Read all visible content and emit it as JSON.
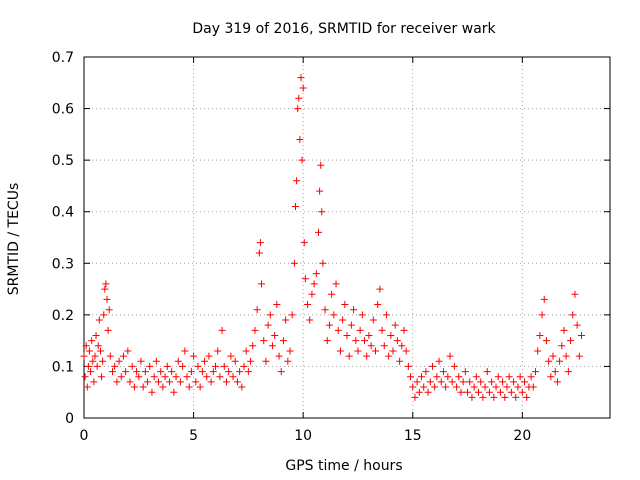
{
  "chart_data": {
    "type": "scatter",
    "title": "Day 319 of 2016, SRMTID for receiver wark",
    "xlabel": "GPS time / hours",
    "ylabel": "SRMTID / TECUs",
    "xlim": [
      0,
      24
    ],
    "ylim": [
      0,
      0.7
    ],
    "x_ticks": [
      0,
      5,
      10,
      15,
      20
    ],
    "y_ticks": [
      0,
      0.1,
      0.2,
      0.3,
      0.4,
      0.5,
      0.6,
      0.7
    ],
    "x_tick_labels": [
      "0",
      "5",
      "10",
      "15",
      "20"
    ],
    "y_tick_labels": [
      "0",
      "0.1",
      "0.2",
      "0.3",
      "0.4",
      "0.5",
      "0.6",
      "0.7"
    ],
    "grid": true,
    "marker": "+",
    "color": "#ff0000",
    "series": [
      {
        "name": "SRMTID",
        "points": [
          [
            0.0,
            0.12
          ],
          [
            0.05,
            0.08
          ],
          [
            0.1,
            0.14
          ],
          [
            0.15,
            0.06
          ],
          [
            0.2,
            0.1
          ],
          [
            0.25,
            0.13
          ],
          [
            0.3,
            0.09
          ],
          [
            0.35,
            0.15
          ],
          [
            0.4,
            0.11
          ],
          [
            0.45,
            0.07
          ],
          [
            0.5,
            0.12
          ],
          [
            0.55,
            0.16
          ],
          [
            0.6,
            0.1
          ],
          [
            0.65,
            0.14
          ],
          [
            0.7,
            0.19
          ],
          [
            0.75,
            0.13
          ],
          [
            0.8,
            0.08
          ],
          [
            0.85,
            0.11
          ],
          [
            0.9,
            0.2
          ],
          [
            0.95,
            0.25
          ],
          [
            1.0,
            0.26
          ],
          [
            1.05,
            0.23
          ],
          [
            1.1,
            0.17
          ],
          [
            1.15,
            0.21
          ],
          [
            1.2,
            0.12
          ],
          [
            1.3,
            0.09
          ],
          [
            1.4,
            0.1
          ],
          [
            1.5,
            0.07
          ],
          [
            1.6,
            0.11
          ],
          [
            1.7,
            0.08
          ],
          [
            1.8,
            0.12
          ],
          [
            1.9,
            0.09
          ],
          [
            2.0,
            0.13
          ],
          [
            2.1,
            0.07
          ],
          [
            2.2,
            0.1
          ],
          [
            2.3,
            0.06
          ],
          [
            2.4,
            0.09
          ],
          [
            2.5,
            0.08
          ],
          [
            2.6,
            0.11
          ],
          [
            2.7,
            0.06
          ],
          [
            2.8,
            0.09
          ],
          [
            2.9,
            0.07
          ],
          [
            3.0,
            0.1
          ],
          [
            3.1,
            0.05
          ],
          [
            3.2,
            0.08
          ],
          [
            3.3,
            0.11
          ],
          [
            3.4,
            0.07
          ],
          [
            3.5,
            0.09
          ],
          [
            3.6,
            0.06
          ],
          [
            3.7,
            0.08
          ],
          [
            3.8,
            0.1
          ],
          [
            3.9,
            0.07
          ],
          [
            4.0,
            0.09
          ],
          [
            4.1,
            0.05
          ],
          [
            4.2,
            0.08
          ],
          [
            4.3,
            0.11
          ],
          [
            4.4,
            0.07
          ],
          [
            4.5,
            0.1
          ],
          [
            4.6,
            0.13
          ],
          [
            4.7,
            0.08
          ],
          [
            4.8,
            0.06
          ],
          [
            4.9,
            0.09
          ],
          [
            5.0,
            0.12
          ],
          [
            5.1,
            0.07
          ],
          [
            5.2,
            0.1
          ],
          [
            5.3,
            0.06
          ],
          [
            5.4,
            0.09
          ],
          [
            5.5,
            0.11
          ],
          [
            5.6,
            0.08
          ],
          [
            5.7,
            0.12
          ],
          [
            5.8,
            0.07
          ],
          [
            5.9,
            0.09
          ],
          [
            6.0,
            0.1
          ],
          [
            6.1,
            0.13
          ],
          [
            6.2,
            0.08
          ],
          [
            6.3,
            0.17
          ],
          [
            6.4,
            0.1
          ],
          [
            6.5,
            0.07
          ],
          [
            6.6,
            0.09
          ],
          [
            6.7,
            0.12
          ],
          [
            6.8,
            0.08
          ],
          [
            6.9,
            0.11
          ],
          [
            7.0,
            0.07
          ],
          [
            7.1,
            0.09
          ],
          [
            7.2,
            0.06
          ],
          [
            7.3,
            0.1
          ],
          [
            7.4,
            0.13
          ],
          [
            7.5,
            0.09
          ],
          [
            7.6,
            0.11
          ],
          [
            7.7,
            0.14
          ],
          [
            7.8,
            0.17
          ],
          [
            7.9,
            0.21
          ],
          [
            8.0,
            0.32
          ],
          [
            8.05,
            0.34
          ],
          [
            8.1,
            0.26
          ],
          [
            8.2,
            0.15
          ],
          [
            8.3,
            0.11
          ],
          [
            8.4,
            0.18
          ],
          [
            8.5,
            0.2
          ],
          [
            8.6,
            0.14
          ],
          [
            8.7,
            0.16
          ],
          [
            8.8,
            0.22
          ],
          [
            8.9,
            0.12
          ],
          [
            9.0,
            0.09
          ],
          [
            9.1,
            0.15
          ],
          [
            9.2,
            0.19
          ],
          [
            9.3,
            0.11
          ],
          [
            9.4,
            0.13
          ],
          [
            9.5,
            0.2
          ],
          [
            9.6,
            0.3
          ],
          [
            9.65,
            0.41
          ],
          [
            9.7,
            0.46
          ],
          [
            9.75,
            0.6
          ],
          [
            9.8,
            0.62
          ],
          [
            9.85,
            0.54
          ],
          [
            9.9,
            0.66
          ],
          [
            9.95,
            0.5
          ],
          [
            10.0,
            0.64
          ],
          [
            10.05,
            0.34
          ],
          [
            10.1,
            0.27
          ],
          [
            10.2,
            0.22
          ],
          [
            10.3,
            0.19
          ],
          [
            10.4,
            0.24
          ],
          [
            10.5,
            0.26
          ],
          [
            10.6,
            0.28
          ],
          [
            10.7,
            0.36
          ],
          [
            10.75,
            0.44
          ],
          [
            10.8,
            0.49
          ],
          [
            10.85,
            0.4
          ],
          [
            10.9,
            0.3
          ],
          [
            11.0,
            0.21
          ],
          [
            11.1,
            0.15
          ],
          [
            11.2,
            0.18
          ],
          [
            11.3,
            0.24
          ],
          [
            11.4,
            0.2
          ],
          [
            11.5,
            0.26
          ],
          [
            11.6,
            0.17
          ],
          [
            11.7,
            0.13
          ],
          [
            11.8,
            0.19
          ],
          [
            11.9,
            0.22
          ],
          [
            12.0,
            0.16
          ],
          [
            12.1,
            0.12
          ],
          [
            12.2,
            0.18
          ],
          [
            12.3,
            0.21
          ],
          [
            12.4,
            0.15
          ],
          [
            12.5,
            0.13
          ],
          [
            12.6,
            0.17
          ],
          [
            12.7,
            0.2
          ],
          [
            12.8,
            0.15
          ],
          [
            12.9,
            0.12
          ],
          [
            13.0,
            0.16
          ],
          [
            13.1,
            0.14
          ],
          [
            13.2,
            0.19
          ],
          [
            13.3,
            0.13
          ],
          [
            13.4,
            0.22
          ],
          [
            13.5,
            0.25
          ],
          [
            13.6,
            0.17
          ],
          [
            13.7,
            0.14
          ],
          [
            13.8,
            0.2
          ],
          [
            13.9,
            0.12
          ],
          [
            14.0,
            0.16
          ],
          [
            14.1,
            0.13
          ],
          [
            14.2,
            0.18
          ],
          [
            14.3,
            0.15
          ],
          [
            14.4,
            0.11
          ],
          [
            14.5,
            0.14
          ],
          [
            14.6,
            0.17
          ],
          [
            14.7,
            0.13
          ],
          [
            14.8,
            0.1
          ],
          [
            14.9,
            0.08
          ],
          [
            15.0,
            0.06
          ],
          [
            15.1,
            0.04
          ],
          [
            15.2,
            0.07
          ],
          [
            15.3,
            0.05
          ],
          [
            15.4,
            0.08
          ],
          [
            15.5,
            0.06
          ],
          [
            15.6,
            0.09
          ],
          [
            15.7,
            0.05
          ],
          [
            15.8,
            0.07
          ],
          [
            15.9,
            0.1
          ],
          [
            16.0,
            0.06
          ],
          [
            16.1,
            0.08
          ],
          [
            16.2,
            0.11
          ],
          [
            16.3,
            0.07
          ],
          [
            16.4,
            0.09
          ],
          [
            16.5,
            0.06
          ],
          [
            16.6,
            0.08
          ],
          [
            16.7,
            0.12
          ],
          [
            16.8,
            0.07
          ],
          [
            16.9,
            0.1
          ],
          [
            17.0,
            0.06
          ],
          [
            17.1,
            0.08
          ],
          [
            17.2,
            0.05
          ],
          [
            17.3,
            0.07
          ],
          [
            17.4,
            0.09
          ],
          [
            17.5,
            0.05
          ],
          [
            17.6,
            0.07
          ],
          [
            17.7,
            0.04
          ],
          [
            17.8,
            0.06
          ],
          [
            17.9,
            0.08
          ],
          [
            18.0,
            0.05
          ],
          [
            18.1,
            0.07
          ],
          [
            18.2,
            0.04
          ],
          [
            18.3,
            0.06
          ],
          [
            18.4,
            0.09
          ],
          [
            18.5,
            0.05
          ],
          [
            18.6,
            0.07
          ],
          [
            18.7,
            0.04
          ],
          [
            18.8,
            0.06
          ],
          [
            18.9,
            0.08
          ],
          [
            19.0,
            0.05
          ],
          [
            19.1,
            0.07
          ],
          [
            19.2,
            0.04
          ],
          [
            19.3,
            0.06
          ],
          [
            19.4,
            0.08
          ],
          [
            19.5,
            0.05
          ],
          [
            19.6,
            0.07
          ],
          [
            19.7,
            0.04
          ],
          [
            19.8,
            0.06
          ],
          [
            19.9,
            0.08
          ],
          [
            20.0,
            0.05
          ],
          [
            20.1,
            0.07
          ],
          [
            20.2,
            0.04
          ],
          [
            20.3,
            0.06
          ],
          [
            20.4,
            0.08
          ],
          [
            20.5,
            0.06
          ],
          [
            20.6,
            0.09
          ],
          [
            20.7,
            0.13
          ],
          [
            20.8,
            0.16
          ],
          [
            20.9,
            0.2
          ],
          [
            21.0,
            0.23
          ],
          [
            21.1,
            0.15
          ],
          [
            21.2,
            0.11
          ],
          [
            21.3,
            0.08
          ],
          [
            21.4,
            0.12
          ],
          [
            21.5,
            0.09
          ],
          [
            21.6,
            0.07
          ],
          [
            21.7,
            0.11
          ],
          [
            21.8,
            0.14
          ],
          [
            21.9,
            0.17
          ],
          [
            22.0,
            0.12
          ],
          [
            22.1,
            0.09
          ],
          [
            22.2,
            0.15
          ],
          [
            22.3,
            0.2
          ],
          [
            22.4,
            0.24
          ],
          [
            22.5,
            0.18
          ],
          [
            22.6,
            0.12
          ],
          [
            22.7,
            0.16
          ]
        ]
      }
    ]
  }
}
